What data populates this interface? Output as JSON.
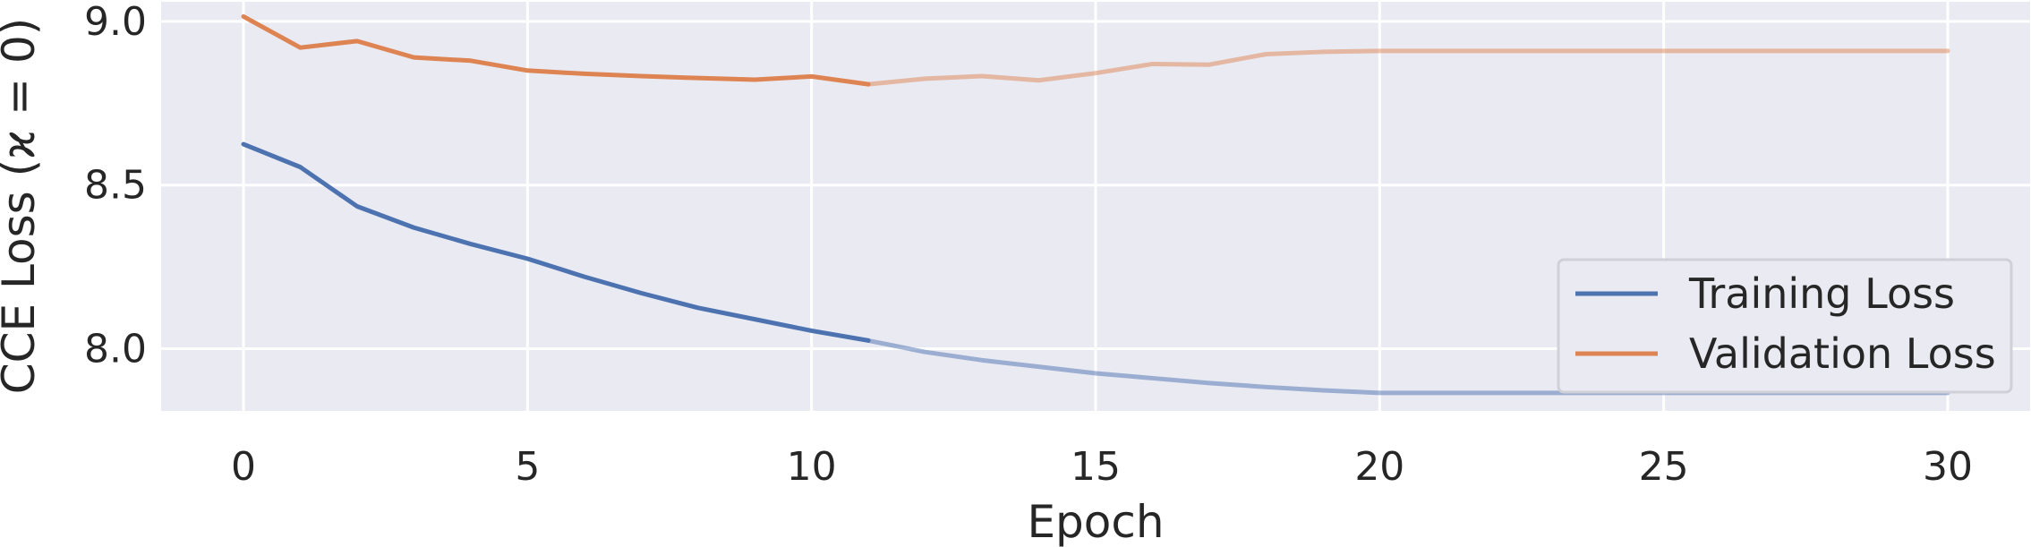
{
  "chart_data": {
    "type": "line",
    "xlabel": "Epoch",
    "ylabel": "CCE Loss (ϰ = 0)",
    "xlim": [
      -1.45,
      31.45
    ],
    "ylim": [
      7.81,
      9.06
    ],
    "xticks": [
      0,
      5,
      10,
      15,
      20,
      25,
      30
    ],
    "yticks": [
      8.0,
      8.5,
      9.0
    ],
    "xtick_labels": [
      "0",
      "5",
      "10",
      "15",
      "20",
      "25",
      "30"
    ],
    "ytick_labels": [
      "8.0",
      "8.5",
      "9.0"
    ],
    "grid": true,
    "background": "#eaeaf2",
    "legend_position": "lower-right",
    "faded_after_epoch": 11,
    "x": [
      0,
      1,
      2,
      3,
      4,
      5,
      6,
      7,
      8,
      9,
      10,
      11,
      12,
      13,
      14,
      15,
      16,
      17,
      18,
      19,
      20,
      21,
      22,
      23,
      24,
      25,
      26,
      27,
      28,
      29,
      30
    ],
    "series": [
      {
        "name": "Training Loss",
        "color": "#4c72b0",
        "values": [
          8.625,
          8.555,
          8.435,
          8.37,
          8.32,
          8.275,
          8.22,
          8.17,
          8.125,
          8.09,
          8.055,
          8.025,
          7.99,
          7.965,
          7.945,
          7.925,
          7.91,
          7.895,
          7.883,
          7.873,
          7.865,
          7.865,
          7.865,
          7.865,
          7.865,
          7.865,
          7.865,
          7.865,
          7.865,
          7.865,
          7.865
        ]
      },
      {
        "name": "Validation Loss",
        "color": "#dd8452",
        "values": [
          9.015,
          8.92,
          8.94,
          8.89,
          8.88,
          8.85,
          8.84,
          8.833,
          8.827,
          8.822,
          8.832,
          8.808,
          8.825,
          8.833,
          8.82,
          8.842,
          8.87,
          8.868,
          8.9,
          8.907,
          8.91,
          8.91,
          8.91,
          8.91,
          8.91,
          8.91,
          8.91,
          8.91,
          8.91,
          8.91,
          8.91
        ]
      }
    ]
  }
}
